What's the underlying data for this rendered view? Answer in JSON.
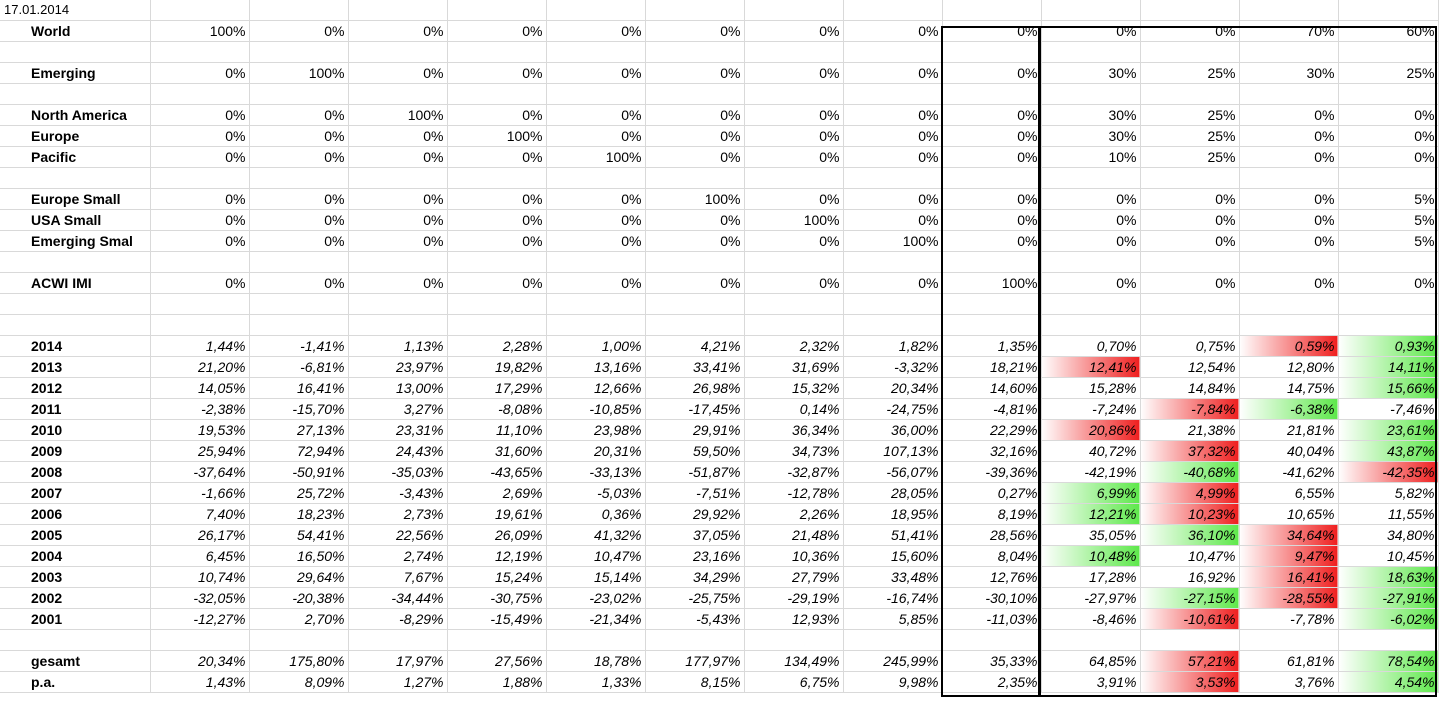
{
  "date": "17.01.2014",
  "colors": {
    "green": "#5ee84b",
    "red": "#ef1f1f",
    "border": "#000000"
  },
  "rows": [
    {
      "type": "date"
    },
    {
      "type": "alloc",
      "label": "World",
      "values": [
        "100%",
        "0%",
        "0%",
        "0%",
        "0%",
        "0%",
        "0%",
        "0%",
        "0%",
        "0%",
        "0%",
        "70%",
        "60%"
      ]
    },
    {
      "type": "spacer"
    },
    {
      "type": "alloc",
      "label": "Emerging",
      "values": [
        "0%",
        "100%",
        "0%",
        "0%",
        "0%",
        "0%",
        "0%",
        "0%",
        "0%",
        "30%",
        "25%",
        "30%",
        "25%"
      ]
    },
    {
      "type": "spacer"
    },
    {
      "type": "alloc",
      "label": "North America",
      "values": [
        "0%",
        "0%",
        "100%",
        "0%",
        "0%",
        "0%",
        "0%",
        "0%",
        "0%",
        "30%",
        "25%",
        "0%",
        "0%"
      ]
    },
    {
      "type": "alloc",
      "label": "Europe",
      "values": [
        "0%",
        "0%",
        "0%",
        "100%",
        "0%",
        "0%",
        "0%",
        "0%",
        "0%",
        "30%",
        "25%",
        "0%",
        "0%"
      ]
    },
    {
      "type": "alloc",
      "label": "Pacific",
      "values": [
        "0%",
        "0%",
        "0%",
        "0%",
        "100%",
        "0%",
        "0%",
        "0%",
        "0%",
        "10%",
        "25%",
        "0%",
        "0%"
      ]
    },
    {
      "type": "spacer"
    },
    {
      "type": "alloc",
      "label": "Europe Small",
      "values": [
        "0%",
        "0%",
        "0%",
        "0%",
        "0%",
        "100%",
        "0%",
        "0%",
        "0%",
        "0%",
        "0%",
        "0%",
        "5%"
      ]
    },
    {
      "type": "alloc",
      "label": "USA Small",
      "values": [
        "0%",
        "0%",
        "0%",
        "0%",
        "0%",
        "0%",
        "100%",
        "0%",
        "0%",
        "0%",
        "0%",
        "0%",
        "5%"
      ]
    },
    {
      "type": "alloc",
      "label": "Emerging Smal",
      "values": [
        "0%",
        "0%",
        "0%",
        "0%",
        "0%",
        "0%",
        "0%",
        "100%",
        "0%",
        "0%",
        "0%",
        "0%",
        "5%"
      ]
    },
    {
      "type": "spacer"
    },
    {
      "type": "alloc",
      "label": "ACWI IMI",
      "values": [
        "0%",
        "0%",
        "0%",
        "0%",
        "0%",
        "0%",
        "0%",
        "0%",
        "100%",
        "0%",
        "0%",
        "0%",
        "0%"
      ]
    },
    {
      "type": "spacer"
    },
    {
      "type": "spacer"
    },
    {
      "type": "ret",
      "label": "2014",
      "values": [
        "1,44%",
        "-1,41%",
        "1,13%",
        "2,28%",
        "1,00%",
        "4,21%",
        "2,32%",
        "1,82%",
        "1,35%",
        "0,70%",
        "0,75%",
        "0,59%",
        "0,93%"
      ],
      "hl": [
        "",
        "",
        "",
        "",
        "",
        "",
        "",
        "",
        "",
        "",
        "",
        "r",
        "g"
      ]
    },
    {
      "type": "ret",
      "label": "2013",
      "values": [
        "21,20%",
        "-6,81%",
        "23,97%",
        "19,82%",
        "13,16%",
        "33,41%",
        "31,69%",
        "-3,32%",
        "18,21%",
        "12,41%",
        "12,54%",
        "12,80%",
        "14,11%"
      ],
      "hl": [
        "",
        "",
        "",
        "",
        "",
        "",
        "",
        "",
        "",
        "r",
        "",
        "",
        "g"
      ]
    },
    {
      "type": "ret",
      "label": "2012",
      "values": [
        "14,05%",
        "16,41%",
        "13,00%",
        "17,29%",
        "12,66%",
        "26,98%",
        "15,32%",
        "20,34%",
        "14,60%",
        "15,28%",
        "14,84%",
        "14,75%",
        "15,66%"
      ],
      "hl": [
        "",
        "",
        "",
        "",
        "",
        "",
        "",
        "",
        "",
        "",
        "",
        "",
        "g"
      ]
    },
    {
      "type": "ret",
      "label": "2011",
      "values": [
        "-2,38%",
        "-15,70%",
        "3,27%",
        "-8,08%",
        "-10,85%",
        "-17,45%",
        "0,14%",
        "-24,75%",
        "-4,81%",
        "-7,24%",
        "-7,84%",
        "-6,38%",
        "-7,46%"
      ],
      "hl": [
        "",
        "",
        "",
        "",
        "",
        "",
        "",
        "",
        "",
        "",
        "r",
        "g",
        ""
      ]
    },
    {
      "type": "ret",
      "label": "2010",
      "values": [
        "19,53%",
        "27,13%",
        "23,31%",
        "11,10%",
        "23,98%",
        "29,91%",
        "36,34%",
        "36,00%",
        "22,29%",
        "20,86%",
        "21,38%",
        "21,81%",
        "23,61%"
      ],
      "hl": [
        "",
        "",
        "",
        "",
        "",
        "",
        "",
        "",
        "",
        "r",
        "",
        "",
        "g"
      ]
    },
    {
      "type": "ret",
      "label": "2009",
      "values": [
        "25,94%",
        "72,94%",
        "24,43%",
        "31,60%",
        "20,31%",
        "59,50%",
        "34,73%",
        "107,13%",
        "32,16%",
        "40,72%",
        "37,32%",
        "40,04%",
        "43,87%"
      ],
      "hl": [
        "",
        "",
        "",
        "",
        "",
        "",
        "",
        "",
        "",
        "",
        "r",
        "",
        "g"
      ]
    },
    {
      "type": "ret",
      "label": "2008",
      "values": [
        "-37,64%",
        "-50,91%",
        "-35,03%",
        "-43,65%",
        "-33,13%",
        "-51,87%",
        "-32,87%",
        "-56,07%",
        "-39,36%",
        "-42,19%",
        "-40,68%",
        "-41,62%",
        "-42,35%"
      ],
      "hl": [
        "",
        "",
        "",
        "",
        "",
        "",
        "",
        "",
        "",
        "",
        "g",
        "",
        "r"
      ]
    },
    {
      "type": "ret",
      "label": "2007",
      "values": [
        "-1,66%",
        "25,72%",
        "-3,43%",
        "2,69%",
        "-5,03%",
        "-7,51%",
        "-12,78%",
        "28,05%",
        "0,27%",
        "6,99%",
        "4,99%",
        "6,55%",
        "5,82%"
      ],
      "hl": [
        "",
        "",
        "",
        "",
        "",
        "",
        "",
        "",
        "",
        "g",
        "r",
        "",
        ""
      ]
    },
    {
      "type": "ret",
      "label": "2006",
      "values": [
        "7,40%",
        "18,23%",
        "2,73%",
        "19,61%",
        "0,36%",
        "29,92%",
        "2,26%",
        "18,95%",
        "8,19%",
        "12,21%",
        "10,23%",
        "10,65%",
        "11,55%"
      ],
      "hl": [
        "",
        "",
        "",
        "",
        "",
        "",
        "",
        "",
        "",
        "g",
        "r",
        "",
        ""
      ]
    },
    {
      "type": "ret",
      "label": "2005",
      "values": [
        "26,17%",
        "54,41%",
        "22,56%",
        "26,09%",
        "41,32%",
        "37,05%",
        "21,48%",
        "51,41%",
        "28,56%",
        "35,05%",
        "36,10%",
        "34,64%",
        "34,80%"
      ],
      "hl": [
        "",
        "",
        "",
        "",
        "",
        "",
        "",
        "",
        "",
        "",
        "g",
        "r",
        ""
      ]
    },
    {
      "type": "ret",
      "label": "2004",
      "values": [
        "6,45%",
        "16,50%",
        "2,74%",
        "12,19%",
        "10,47%",
        "23,16%",
        "10,36%",
        "15,60%",
        "8,04%",
        "10,48%",
        "10,47%",
        "9,47%",
        "10,45%"
      ],
      "hl": [
        "",
        "",
        "",
        "",
        "",
        "",
        "",
        "",
        "",
        "g",
        "",
        "r",
        ""
      ]
    },
    {
      "type": "ret",
      "label": "2003",
      "values": [
        "10,74%",
        "29,64%",
        "7,67%",
        "15,24%",
        "15,14%",
        "34,29%",
        "27,79%",
        "33,48%",
        "12,76%",
        "17,28%",
        "16,92%",
        "16,41%",
        "18,63%"
      ],
      "hl": [
        "",
        "",
        "",
        "",
        "",
        "",
        "",
        "",
        "",
        "",
        "",
        "r",
        "g"
      ]
    },
    {
      "type": "ret",
      "label": "2002",
      "values": [
        "-32,05%",
        "-20,38%",
        "-34,44%",
        "-30,75%",
        "-23,02%",
        "-25,75%",
        "-29,19%",
        "-16,74%",
        "-30,10%",
        "-27,97%",
        "-27,15%",
        "-28,55%",
        "-27,91%"
      ],
      "hl": [
        "",
        "",
        "",
        "",
        "",
        "",
        "",
        "",
        "",
        "",
        "g",
        "r",
        "g"
      ]
    },
    {
      "type": "ret",
      "label": "2001",
      "values": [
        "-12,27%",
        "2,70%",
        "-8,29%",
        "-15,49%",
        "-21,34%",
        "-5,43%",
        "12,93%",
        "5,85%",
        "-11,03%",
        "-8,46%",
        "-10,61%",
        "-7,78%",
        "-6,02%"
      ],
      "hl": [
        "",
        "",
        "",
        "",
        "",
        "",
        "",
        "",
        "",
        "",
        "r",
        "",
        "g"
      ]
    },
    {
      "type": "spacer"
    },
    {
      "type": "ret",
      "label": "gesamt",
      "values": [
        "20,34%",
        "175,80%",
        "17,97%",
        "27,56%",
        "18,78%",
        "177,97%",
        "134,49%",
        "245,99%",
        "35,33%",
        "64,85%",
        "57,21%",
        "61,81%",
        "78,54%"
      ],
      "hl": [
        "",
        "",
        "",
        "",
        "",
        "",
        "",
        "",
        "",
        "",
        "r",
        "",
        "g"
      ]
    },
    {
      "type": "ret",
      "label": "p.a.",
      "values": [
        "1,43%",
        "8,09%",
        "1,27%",
        "1,88%",
        "1,33%",
        "8,15%",
        "6,75%",
        "9,98%",
        "2,35%",
        "3,91%",
        "3,53%",
        "3,76%",
        "4,54%"
      ],
      "hl": [
        "",
        "",
        "",
        "",
        "",
        "",
        "",
        "",
        "",
        "",
        "r",
        "",
        "g"
      ]
    }
  ]
}
